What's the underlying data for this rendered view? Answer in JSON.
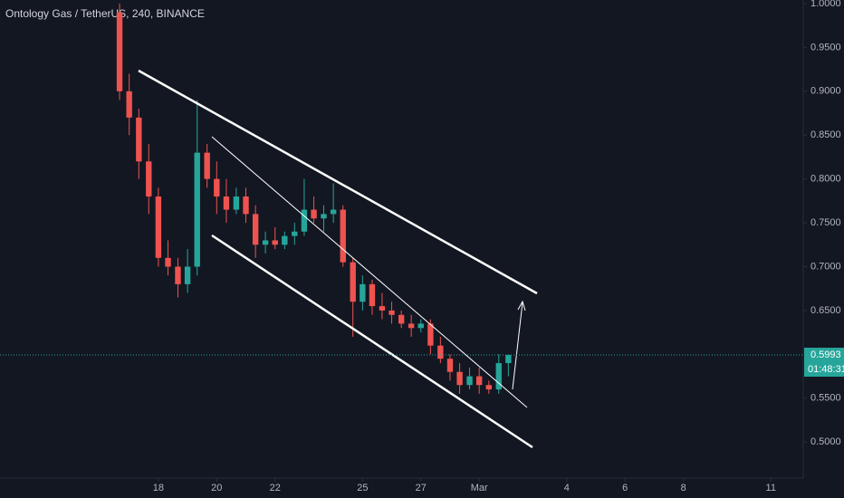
{
  "chart_data": {
    "type": "candlestick",
    "title": "Ontology Gas / TetherUS, 240, BINANCE",
    "up_color": "#26a69a",
    "down_color": "#ef5350",
    "x": [
      16.67,
      17.0,
      17.33,
      17.67,
      18.0,
      18.33,
      18.67,
      19.0,
      19.33,
      19.67,
      20.0,
      20.33,
      20.67,
      21.0,
      21.33,
      21.67,
      22.0,
      22.33,
      22.67,
      23.0,
      23.33,
      23.67,
      24.0,
      24.33,
      24.67,
      25.0,
      25.33,
      25.67,
      26.0,
      26.33,
      26.67,
      27.0,
      27.33,
      27.67,
      28.0,
      28.33,
      28.67,
      29.0,
      29.33,
      29.67,
      30.0
    ],
    "open": [
      0.99,
      0.9,
      0.87,
      0.82,
      0.78,
      0.71,
      0.7,
      0.68,
      0.7,
      0.83,
      0.8,
      0.78,
      0.765,
      0.78,
      0.76,
      0.725,
      0.73,
      0.725,
      0.735,
      0.74,
      0.765,
      0.755,
      0.76,
      0.765,
      0.705,
      0.66,
      0.68,
      0.655,
      0.65,
      0.645,
      0.635,
      0.63,
      0.635,
      0.61,
      0.595,
      0.58,
      0.565,
      0.575,
      0.565,
      0.56,
      0.59
    ],
    "high": [
      1.0,
      0.92,
      0.88,
      0.84,
      0.79,
      0.73,
      0.71,
      0.72,
      0.89,
      0.84,
      0.82,
      0.8,
      0.79,
      0.79,
      0.77,
      0.74,
      0.745,
      0.74,
      0.75,
      0.8,
      0.78,
      0.77,
      0.795,
      0.77,
      0.71,
      0.69,
      0.685,
      0.67,
      0.66,
      0.65,
      0.645,
      0.64,
      0.64,
      0.62,
      0.6,
      0.59,
      0.585,
      0.585,
      0.57,
      0.6,
      0.6
    ],
    "low": [
      0.89,
      0.85,
      0.8,
      0.76,
      0.7,
      0.69,
      0.665,
      0.67,
      0.69,
      0.79,
      0.76,
      0.75,
      0.76,
      0.75,
      0.71,
      0.715,
      0.72,
      0.72,
      0.725,
      0.735,
      0.75,
      0.74,
      0.75,
      0.7,
      0.62,
      0.65,
      0.645,
      0.64,
      0.635,
      0.63,
      0.62,
      0.625,
      0.6,
      0.59,
      0.57,
      0.555,
      0.56,
      0.555,
      0.555,
      0.555,
      0.575
    ],
    "close": [
      0.9,
      0.87,
      0.82,
      0.78,
      0.71,
      0.7,
      0.68,
      0.7,
      0.83,
      0.8,
      0.78,
      0.765,
      0.78,
      0.76,
      0.725,
      0.73,
      0.725,
      0.735,
      0.74,
      0.765,
      0.755,
      0.76,
      0.765,
      0.705,
      0.66,
      0.68,
      0.655,
      0.65,
      0.645,
      0.635,
      0.63,
      0.635,
      0.61,
      0.595,
      0.58,
      0.565,
      0.575,
      0.565,
      0.56,
      0.59,
      0.5993
    ],
    "xlim": [
      12.57,
      40.11
    ],
    "xticks": [
      18,
      20,
      22,
      25,
      27,
      {
        "value": 29,
        "label": "Mar"
      },
      {
        "value": 32,
        "label": "4"
      },
      {
        "value": 34,
        "label": "6"
      },
      {
        "value": 36,
        "label": "8"
      },
      {
        "value": 39,
        "label": "11"
      }
    ],
    "ylim": [
      0.4589,
      1.0041
    ],
    "yticks": [
      {
        "value": 1.0,
        "label": "1.0000"
      },
      {
        "value": 0.95,
        "label": "0.9500"
      },
      {
        "value": 0.9,
        "label": "0.9000"
      },
      {
        "value": 0.85,
        "label": "0.8500"
      },
      {
        "value": 0.8,
        "label": "0.8000"
      },
      {
        "value": 0.75,
        "label": "0.7500"
      },
      {
        "value": 0.7,
        "label": "0.7000"
      },
      {
        "value": 0.65,
        "label": "0.6500"
      },
      {
        "value": 0.6,
        "label": "0.6000"
      },
      {
        "value": 0.55,
        "label": "0.5500"
      },
      {
        "value": 0.5,
        "label": "0.5000"
      }
    ],
    "last_price": 0.5993,
    "countdown": "01:48:31"
  }
}
